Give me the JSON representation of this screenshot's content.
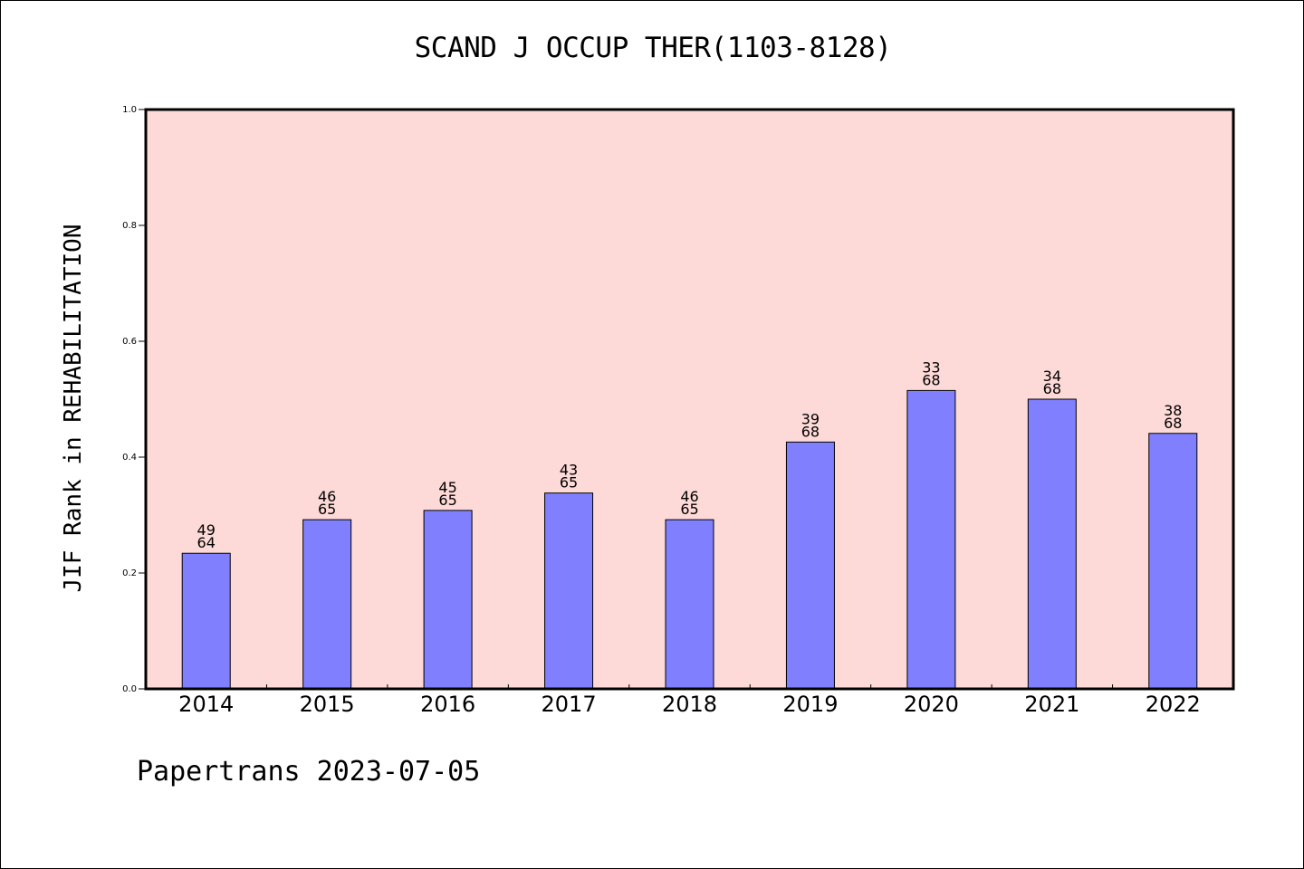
{
  "chart_data": {
    "type": "bar",
    "title": "SCAND J OCCUP THER(1103-8128)",
    "xlabel": "",
    "ylabel": "JIF Rank in REHABILITATION",
    "ylim": [
      0,
      1.0
    ],
    "yticks": [
      "0.0",
      "0.2",
      "0.4",
      "0.6",
      "0.8",
      "1.0"
    ],
    "categories": [
      "2014",
      "2015",
      "2016",
      "2017",
      "2018",
      "2019",
      "2020",
      "2021",
      "2022"
    ],
    "values": [
      0.234,
      0.292,
      0.308,
      0.338,
      0.292,
      0.426,
      0.515,
      0.5,
      0.441
    ],
    "bar_labels": [
      [
        "49",
        "64"
      ],
      [
        "46",
        "65"
      ],
      [
        "45",
        "65"
      ],
      [
        "43",
        "65"
      ],
      [
        "46",
        "65"
      ],
      [
        "39",
        "68"
      ],
      [
        "33",
        "68"
      ],
      [
        "34",
        "68"
      ],
      [
        "38",
        "68"
      ]
    ],
    "grid": false,
    "legend": "none",
    "colors": {
      "bar": "#8080ff",
      "plot_background": "#fddad7",
      "axes": "#000000"
    }
  },
  "footer": "Papertrans 2023-07-05"
}
